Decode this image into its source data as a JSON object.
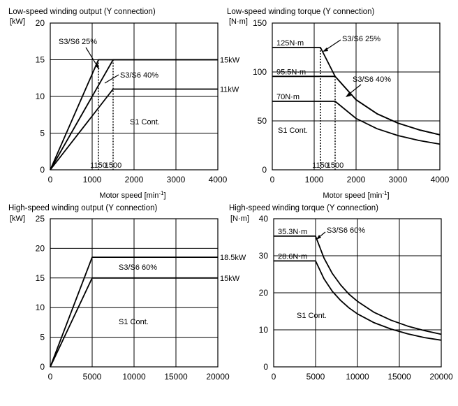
{
  "chart_data": [
    {
      "type": "line",
      "title": "Low-speed winding output (Y connection)",
      "ylabel_unit": "[kW]",
      "xlabel": "Motor speed [min",
      "xlabel_sup": "-1",
      "xlabel_close": "]",
      "xlim": [
        0,
        4000
      ],
      "ylim": [
        0,
        20
      ],
      "xticks": [
        0,
        1000,
        2000,
        3000,
        4000
      ],
      "yticks": [
        0,
        5,
        10,
        15,
        20
      ],
      "grid": true,
      "series": [
        {
          "name": "S3/S6 25%",
          "x": [
            0,
            1150,
            4000
          ],
          "y": [
            0,
            15,
            15
          ]
        },
        {
          "name": "S3/S6 40%",
          "x": [
            0,
            1500,
            4000
          ],
          "y": [
            0,
            15,
            15
          ]
        },
        {
          "name": "S1 Cont.",
          "x": [
            0,
            1500,
            4000
          ],
          "y": [
            0,
            11,
            11
          ]
        }
      ],
      "right_labels": [
        {
          "text": "15kW",
          "y": 15
        },
        {
          "text": "11kW",
          "y": 11
        }
      ],
      "vlines": [
        {
          "x": 1150,
          "label": "1150"
        },
        {
          "x": 1500,
          "label": "1500"
        }
      ]
    },
    {
      "type": "line",
      "title": "Low-speed winding torque (Y connection)",
      "ylabel_unit": "[N·m]",
      "xlabel": "Motor speed [min",
      "xlabel_sup": "-1",
      "xlabel_close": "]",
      "xlim": [
        0,
        4000
      ],
      "ylim": [
        0,
        150
      ],
      "xticks": [
        0,
        1000,
        2000,
        3000,
        4000
      ],
      "yticks": [
        0,
        50,
        100,
        150
      ],
      "grid": true,
      "series": [
        {
          "name": "S3/S6 25%",
          "x": [
            0,
            1150,
            1500,
            2000,
            2500,
            3000,
            3500,
            4000
          ],
          "y": [
            125,
            125,
            95.5,
            71.6,
            57.3,
            47.7,
            40.9,
            35.8
          ]
        },
        {
          "name": "S3/S6 40%",
          "x": [
            0,
            1500,
            2000,
            2500,
            3000,
            3500,
            4000
          ],
          "y": [
            95.5,
            95.5,
            71.6,
            57.3,
            47.7,
            40.9,
            35.8
          ]
        },
        {
          "name": "S1 Cont.",
          "x": [
            0,
            1500,
            2000,
            2500,
            3000,
            3500,
            4000
          ],
          "y": [
            70,
            70,
            52.5,
            42,
            35,
            30,
            26.3
          ]
        }
      ],
      "left_labels": [
        {
          "text": "125N·m",
          "y": 125
        },
        {
          "text": "95.5N·m",
          "y": 95.5
        },
        {
          "text": "70N·m",
          "y": 70
        }
      ],
      "vlines": [
        {
          "x": 1150,
          "label": "1150"
        },
        {
          "x": 1500,
          "label": "1500"
        }
      ]
    },
    {
      "type": "line",
      "title": "High-speed winding output (Y connection)",
      "ylabel_unit": "[kW]",
      "xlim": [
        0,
        20000
      ],
      "ylim": [
        0,
        25
      ],
      "xticks": [
        0,
        5000,
        10000,
        15000,
        20000
      ],
      "yticks": [
        0,
        5,
        10,
        15,
        20,
        25
      ],
      "grid": true,
      "series": [
        {
          "name": "S3/S6 60%",
          "x": [
            0,
            5000,
            20000
          ],
          "y": [
            0,
            18.5,
            18.5
          ]
        },
        {
          "name": "S1 Cont.",
          "x": [
            0,
            5000,
            20000
          ],
          "y": [
            0,
            15,
            15
          ]
        }
      ],
      "right_labels": [
        {
          "text": "18.5kW",
          "y": 18.5
        },
        {
          "text": "15kW",
          "y": 15
        }
      ]
    },
    {
      "type": "line",
      "title": "High-speed winding torque (Y connection)",
      "ylabel_unit": "[N·m]",
      "xlim": [
        0,
        20000
      ],
      "ylim": [
        0,
        40
      ],
      "xticks": [
        0,
        5000,
        10000,
        15000,
        20000
      ],
      "yticks": [
        0,
        10,
        20,
        30,
        40
      ],
      "grid": true,
      "series": [
        {
          "name": "S3/S6 60%",
          "x": [
            0,
            5000,
            6000,
            7000,
            8000,
            9000,
            10000,
            12000,
            14000,
            16000,
            18000,
            20000
          ],
          "y": [
            35.3,
            35.3,
            29.4,
            25.2,
            22.1,
            19.6,
            17.7,
            14.7,
            12.6,
            11.0,
            9.8,
            8.8
          ]
        },
        {
          "name": "S1 Cont.",
          "x": [
            0,
            5000,
            6000,
            7000,
            8000,
            9000,
            10000,
            12000,
            14000,
            16000,
            18000,
            20000
          ],
          "y": [
            28.6,
            28.6,
            23.8,
            20.4,
            17.9,
            15.9,
            14.3,
            11.9,
            10.2,
            8.9,
            7.9,
            7.2
          ]
        }
      ],
      "left_labels": [
        {
          "text": "35.3N·m",
          "y": 35.3
        },
        {
          "text": "28.6N·m",
          "y": 28.6
        }
      ]
    }
  ]
}
